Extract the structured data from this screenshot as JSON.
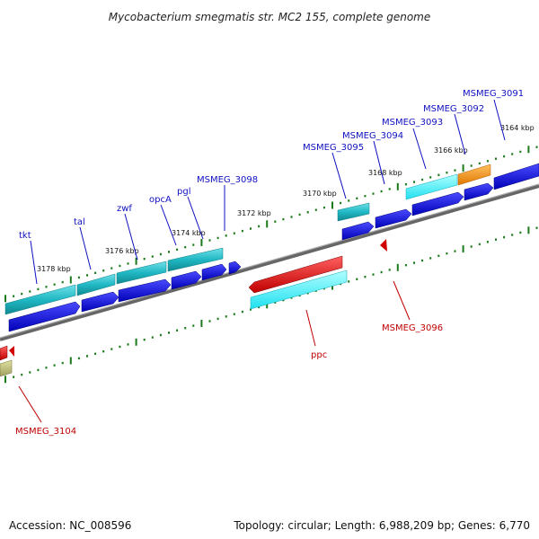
{
  "title": "Mycobacterium smegmatis str. MC2 155, complete genome",
  "footer": {
    "accession": "Accession: NC_008596",
    "summary": "Topology: circular; Length: 6,988,209 bp; Genes: 6,770"
  },
  "colors": {
    "backbone": "#808080",
    "tick_major": "#1a7a1a",
    "label_forward": "#1010c0",
    "label_reverse": "#c00000",
    "gene_blue": "#1010e0",
    "gene_teal": "#20b0c0",
    "gene_cyan": "#30e8f0",
    "gene_red": "#e01010",
    "gene_orange": "#f08a10"
  },
  "scale_labels": [
    "3178 kbp",
    "3176 kbp",
    "3174 kbp",
    "3172 kbp",
    "3170 kbp",
    "3168 kbp",
    "3166 kbp",
    "3164 kbp"
  ],
  "genes": [
    {
      "name": "tkt",
      "strand": "forward"
    },
    {
      "name": "tal",
      "strand": "forward"
    },
    {
      "name": "zwf",
      "strand": "forward"
    },
    {
      "name": "opcA",
      "strand": "forward"
    },
    {
      "name": "pgl",
      "strand": "forward"
    },
    {
      "name": "MSMEG_3098",
      "strand": "forward"
    },
    {
      "name": "MSMEG_3095",
      "strand": "forward"
    },
    {
      "name": "MSMEG_3094",
      "strand": "forward"
    },
    {
      "name": "MSMEG_3093",
      "strand": "forward"
    },
    {
      "name": "MSMEG_3092",
      "strand": "forward"
    },
    {
      "name": "MSMEG_3091",
      "strand": "forward"
    },
    {
      "name": "ppc",
      "strand": "reverse"
    },
    {
      "name": "MSMEG_3096",
      "strand": "reverse"
    },
    {
      "name": "MSMEG_3104",
      "strand": "reverse"
    }
  ]
}
